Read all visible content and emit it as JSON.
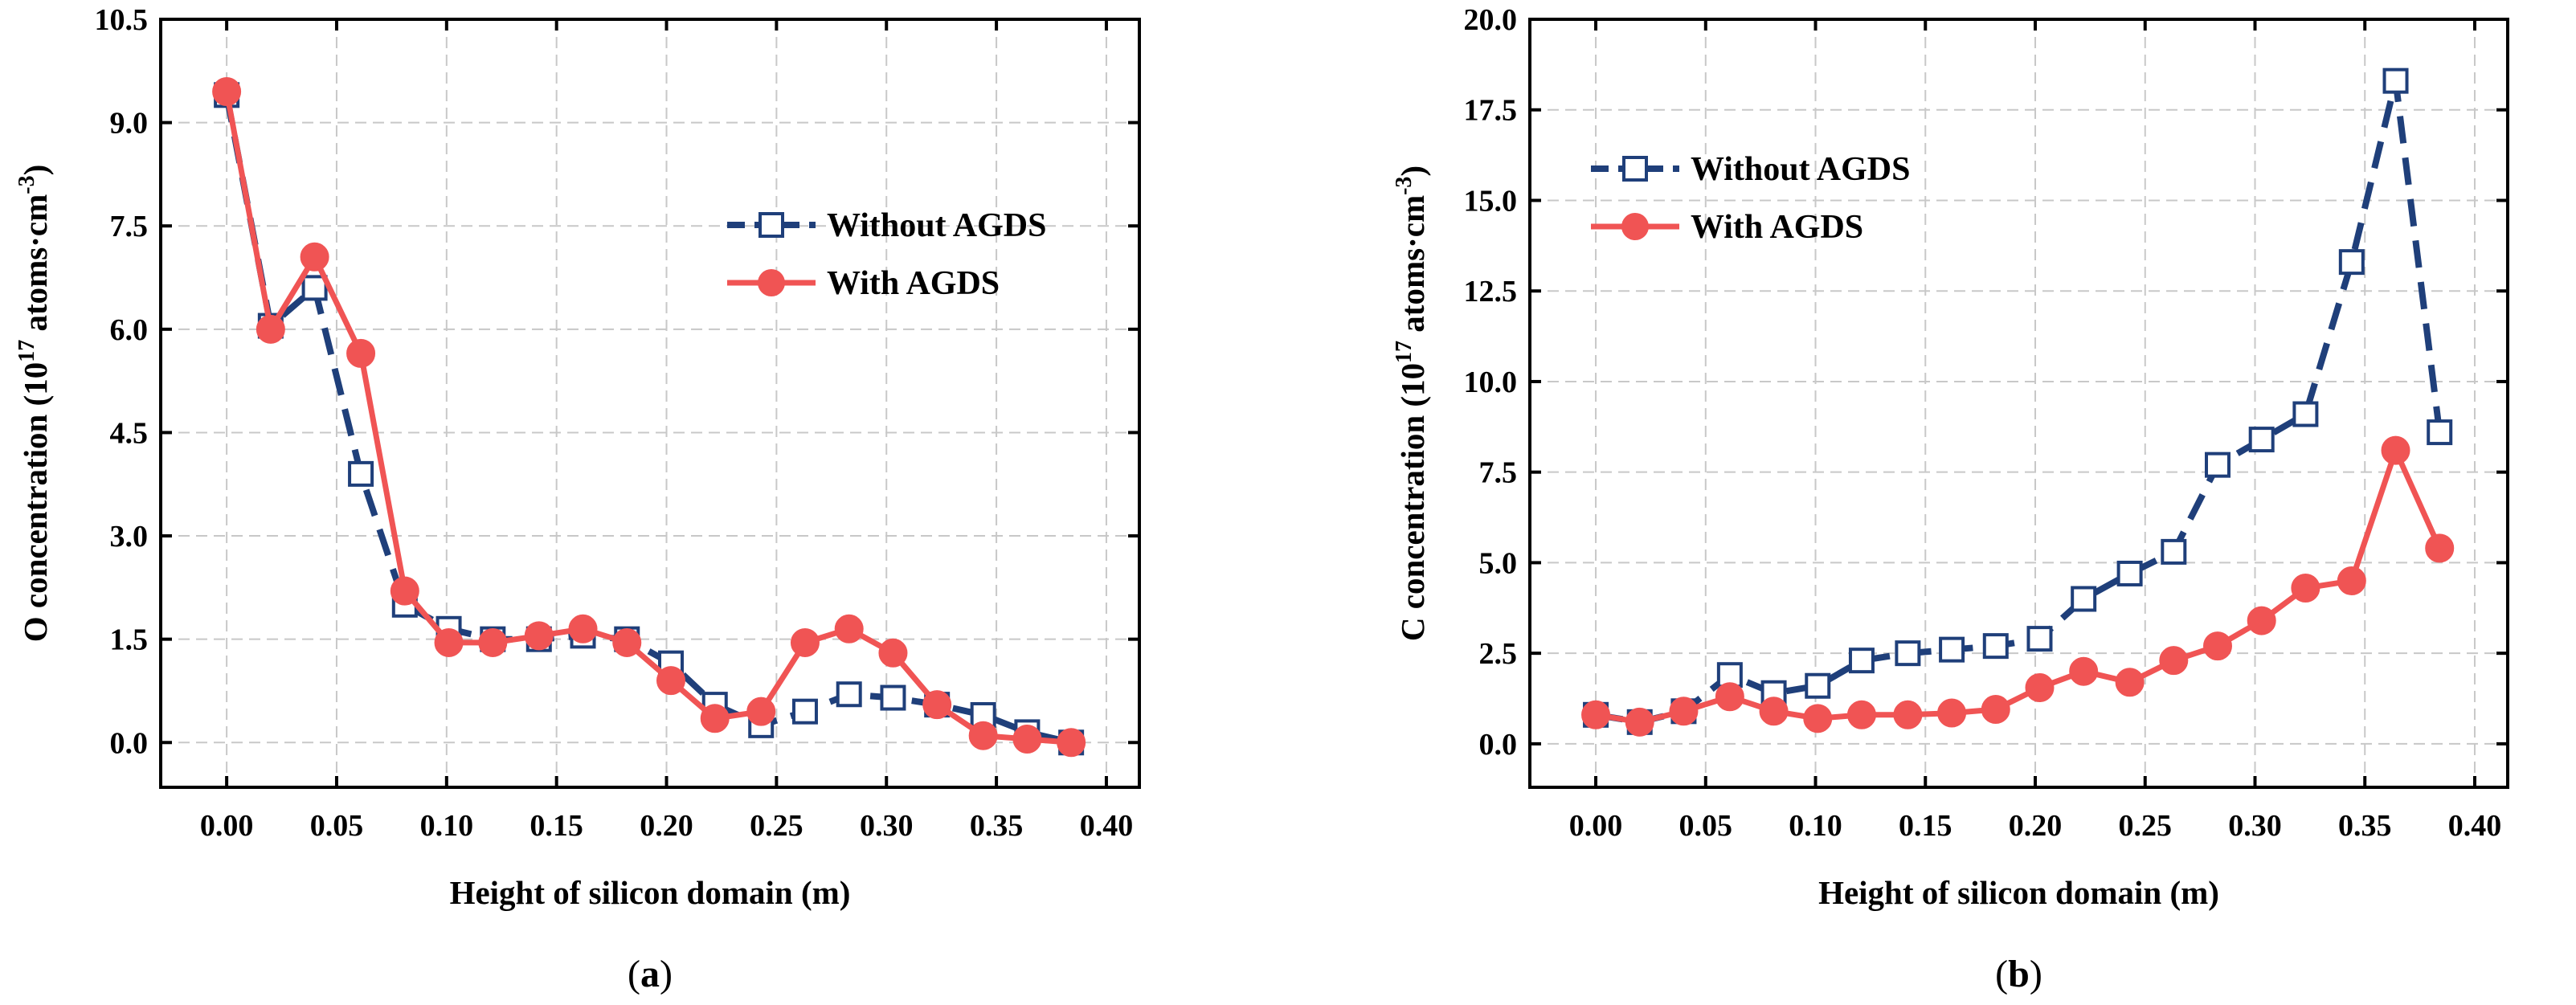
{
  "chart_data": [
    {
      "type": "line",
      "panel_label": "(a)",
      "panel_letter": "a",
      "xlabel": "Height of silicon domain (m)",
      "ylabel_main": "O concentration (10",
      "ylabel_sup": "17",
      "ylabel_tail": " atoms·cm",
      "ylabel_sup2": "-3",
      "ylabel_close": ")",
      "xlim": [
        -0.03,
        0.415
      ],
      "ylim": [
        -0.65,
        10.5
      ],
      "xticks": [
        "0.00",
        "0.05",
        "0.10",
        "0.15",
        "0.20",
        "0.25",
        "0.30",
        "0.35",
        "0.40"
      ],
      "yticks": [
        "0.0",
        "1.5",
        "3.0",
        "4.5",
        "6.0",
        "7.5",
        "9.0",
        "10.5"
      ],
      "grid": true,
      "legend_position": "upper-right",
      "x": [
        0.0,
        0.02,
        0.04,
        0.061,
        0.081,
        0.101,
        0.121,
        0.142,
        0.162,
        0.182,
        0.202,
        0.222,
        0.243,
        0.263,
        0.283,
        0.303,
        0.323,
        0.344,
        0.364,
        0.384
      ],
      "series": [
        {
          "name": "Without AGDS",
          "color": "#1f3f7a",
          "marker": "open-square",
          "style": "dashed",
          "values": [
            9.4,
            6.05,
            6.6,
            3.9,
            2.0,
            1.65,
            1.5,
            1.5,
            1.55,
            1.5,
            1.15,
            0.55,
            0.25,
            0.45,
            0.7,
            0.65,
            0.55,
            0.4,
            0.15,
            0.0
          ]
        },
        {
          "name": "With AGDS",
          "color": "#f05454",
          "marker": "filled-circle",
          "style": "solid",
          "values": [
            9.45,
            6.0,
            7.05,
            5.65,
            2.2,
            1.45,
            1.45,
            1.55,
            1.65,
            1.45,
            0.9,
            0.35,
            0.45,
            1.45,
            1.65,
            1.3,
            0.55,
            0.1,
            0.05,
            0.0
          ]
        }
      ]
    },
    {
      "type": "line",
      "panel_label": "(b)",
      "panel_letter": "b",
      "xlabel": "Height of silicon domain (m)",
      "ylabel_main": "C concentration (10",
      "ylabel_sup": "17",
      "ylabel_tail": " atoms·cm",
      "ylabel_sup2": "-3",
      "ylabel_close": ")",
      "xlim": [
        -0.03,
        0.415
      ],
      "ylim": [
        -1.2,
        20.0
      ],
      "xticks": [
        "0.00",
        "0.05",
        "0.10",
        "0.15",
        "0.20",
        "0.25",
        "0.30",
        "0.35",
        "0.40"
      ],
      "yticks": [
        "0.0",
        "2.5",
        "5.0",
        "7.5",
        "10.0",
        "12.5",
        "15.0",
        "17.5",
        "20.0"
      ],
      "grid": true,
      "legend_position": "upper-left",
      "x": [
        0.0,
        0.02,
        0.04,
        0.061,
        0.081,
        0.101,
        0.121,
        0.142,
        0.162,
        0.182,
        0.202,
        0.222,
        0.243,
        0.263,
        0.283,
        0.303,
        0.323,
        0.344,
        0.364,
        0.384
      ],
      "series": [
        {
          "name": "Without AGDS",
          "color": "#1f3f7a",
          "marker": "open-square",
          "style": "dashed",
          "values": [
            0.8,
            0.6,
            0.9,
            1.9,
            1.4,
            1.6,
            2.3,
            2.5,
            2.6,
            2.7,
            2.9,
            4.0,
            4.7,
            5.3,
            7.7,
            8.4,
            9.1,
            13.3,
            18.3,
            8.6
          ]
        },
        {
          "name": "With AGDS",
          "color": "#f05454",
          "marker": "filled-circle",
          "style": "solid",
          "values": [
            0.8,
            0.6,
            0.9,
            1.3,
            0.9,
            0.7,
            0.8,
            0.8,
            0.85,
            0.95,
            1.55,
            2.0,
            1.7,
            2.3,
            2.7,
            3.4,
            4.3,
            4.5,
            8.1,
            5.4
          ]
        }
      ]
    }
  ]
}
